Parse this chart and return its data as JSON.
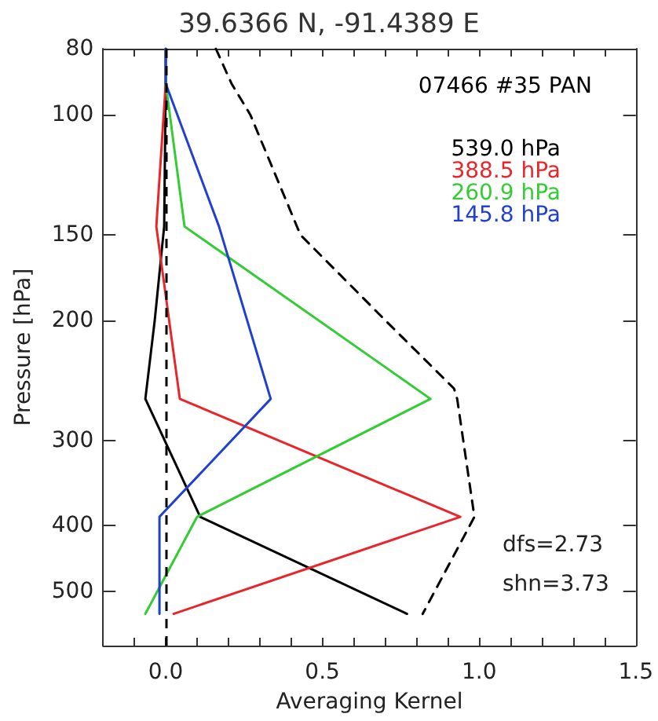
{
  "chart_data": {
    "type": "line",
    "title": "39.6366 N, -91.4389 E",
    "xlabel": "Averaging Kernel",
    "ylabel": "Pressure [hPa]",
    "annotations": [
      "07466 #35 PAN",
      "dfs=2.73",
      "shn=3.73"
    ],
    "series": [
      {
        "name": "539.0 hPa",
        "color": "#000000",
        "x": [
          0.0,
          0.0,
          -0.005,
          -0.035,
          -0.065,
          0.11,
          0.77
        ],
        "values": [
          80,
          90,
          145.8,
          200,
          260.9,
          388.5,
          539
        ]
      },
      {
        "name": "388.5 hPa",
        "color": "#e8262a",
        "x": [
          0.0,
          0.0,
          -0.03,
          0.045,
          0.94,
          0.025
        ],
        "values": [
          80,
          90,
          145.8,
          260.9,
          388.5,
          539
        ]
      },
      {
        "name": "260.9 hPa",
        "color": "#33cc33",
        "x": [
          0.0,
          0.0,
          0.06,
          0.845,
          0.1,
          -0.065
        ],
        "values": [
          80,
          90,
          145.8,
          260.9,
          388.5,
          539
        ]
      },
      {
        "name": "145.8 hPa",
        "color": "#2040d0",
        "x": [
          0.0,
          0.0,
          0.17,
          0.335,
          -0.02,
          -0.02
        ],
        "values": [
          80,
          90,
          145.8,
          260.9,
          388.5,
          539
        ]
      },
      {
        "color": "#000000",
        "line_style": "dashed",
        "x": [
          0.16,
          0.21,
          0.27,
          0.43,
          0.7,
          0.92,
          0.93,
          0.985,
          0.82
        ],
        "values": [
          80,
          90,
          100,
          150,
          200,
          252,
          260.9,
          388.5,
          539
        ]
      }
    ],
    "xlim": [
      -0.2,
      1.5
    ],
    "ylim": [
      600,
      80
    ],
    "log": "y",
    "xticks": [
      {
        "value": -0.1,
        "label": null
      },
      {
        "value": 0,
        "label": "0.0"
      },
      {
        "value": 0.1,
        "label": null
      },
      {
        "value": 0.2,
        "label": null
      },
      {
        "value": 0.3,
        "label": null
      },
      {
        "value": 0.4,
        "label": null
      },
      {
        "value": 0.5,
        "label": "0.5"
      },
      {
        "value": 0.6,
        "label": null
      },
      {
        "value": 0.7,
        "label": null
      },
      {
        "value": 0.8,
        "label": null
      },
      {
        "value": 0.9,
        "label": null
      },
      {
        "value": 1.0,
        "label": "1.0"
      },
      {
        "value": 1.1,
        "label": null
      },
      {
        "value": 1.2,
        "label": null
      },
      {
        "value": 1.3,
        "label": null
      },
      {
        "value": 1.4,
        "label": null
      },
      {
        "value": 1.5,
        "label": "1.5"
      }
    ],
    "yticks": [
      80,
      100,
      150,
      200,
      300,
      400,
      500
    ],
    "ref_lines": [
      {
        "axis": "x",
        "value": 0,
        "line_style": "dashed",
        "color": "#000000"
      }
    ],
    "legend": "top right",
    "marker": "none",
    "line_style": "solid",
    "grid": false
  }
}
